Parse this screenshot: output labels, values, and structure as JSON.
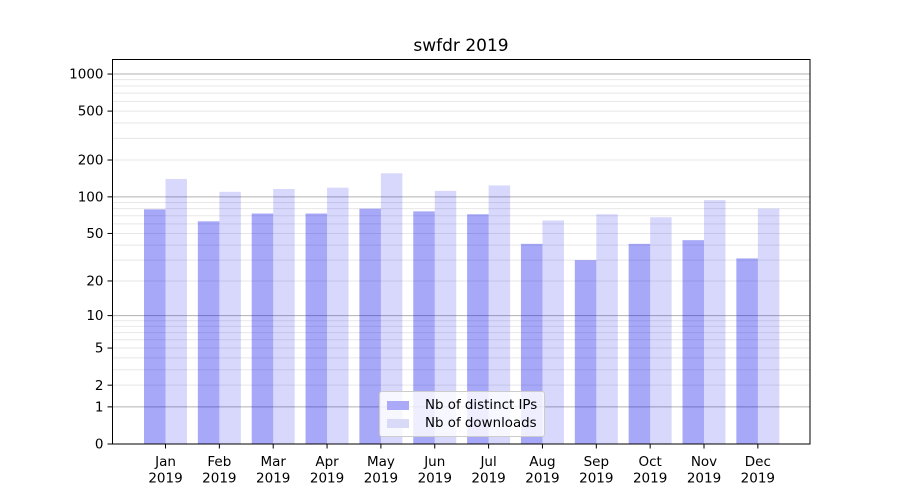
{
  "chart_data": {
    "type": "bar",
    "title": "swfdr 2019",
    "x_axis": {
      "months": [
        "Jan",
        "Feb",
        "Mar",
        "Apr",
        "May",
        "Jun",
        "Jul",
        "Aug",
        "Sep",
        "Oct",
        "Nov",
        "Dec"
      ],
      "year": "2019"
    },
    "series": [
      {
        "name": "Nb of distinct IPs",
        "color": "rgba(0,0,234,0.34)",
        "legend_color": "#aaaaf8",
        "values": [
          79,
          63,
          73,
          73,
          80,
          76,
          72,
          41,
          30,
          41,
          44,
          31
        ]
      },
      {
        "name": "Nb of downloads",
        "color": "rgba(10,10,234,0.16)",
        "legend_color": "#d9d9f8",
        "values": [
          140,
          110,
          116,
          119,
          156,
          112,
          124,
          64,
          72,
          68,
          94,
          80
        ]
      }
    ],
    "yscale": "log10(value+1)",
    "y_ticks": [
      0,
      1,
      2,
      5,
      10,
      20,
      50,
      100,
      200,
      500,
      1000
    ],
    "ylim": [
      0,
      1300
    ],
    "grid": {
      "orientation": "horizontal",
      "major": [
        1,
        10,
        100,
        1000
      ],
      "minor": [
        2,
        3,
        4,
        5,
        6,
        7,
        8,
        9,
        20,
        30,
        40,
        50,
        60,
        70,
        80,
        90,
        200,
        300,
        400,
        500,
        600,
        700,
        800,
        900
      ]
    },
    "legend_position": "inside-bottom-center"
  },
  "colors": {
    "grid_major": "#b0b0b0",
    "grid_minor": "#e7e7e7",
    "spine": "#000000",
    "tick": "#000000",
    "text": "#000000",
    "legend_border": "#cccccc",
    "legend_bg": "rgba(255,255,255,0.8)"
  }
}
